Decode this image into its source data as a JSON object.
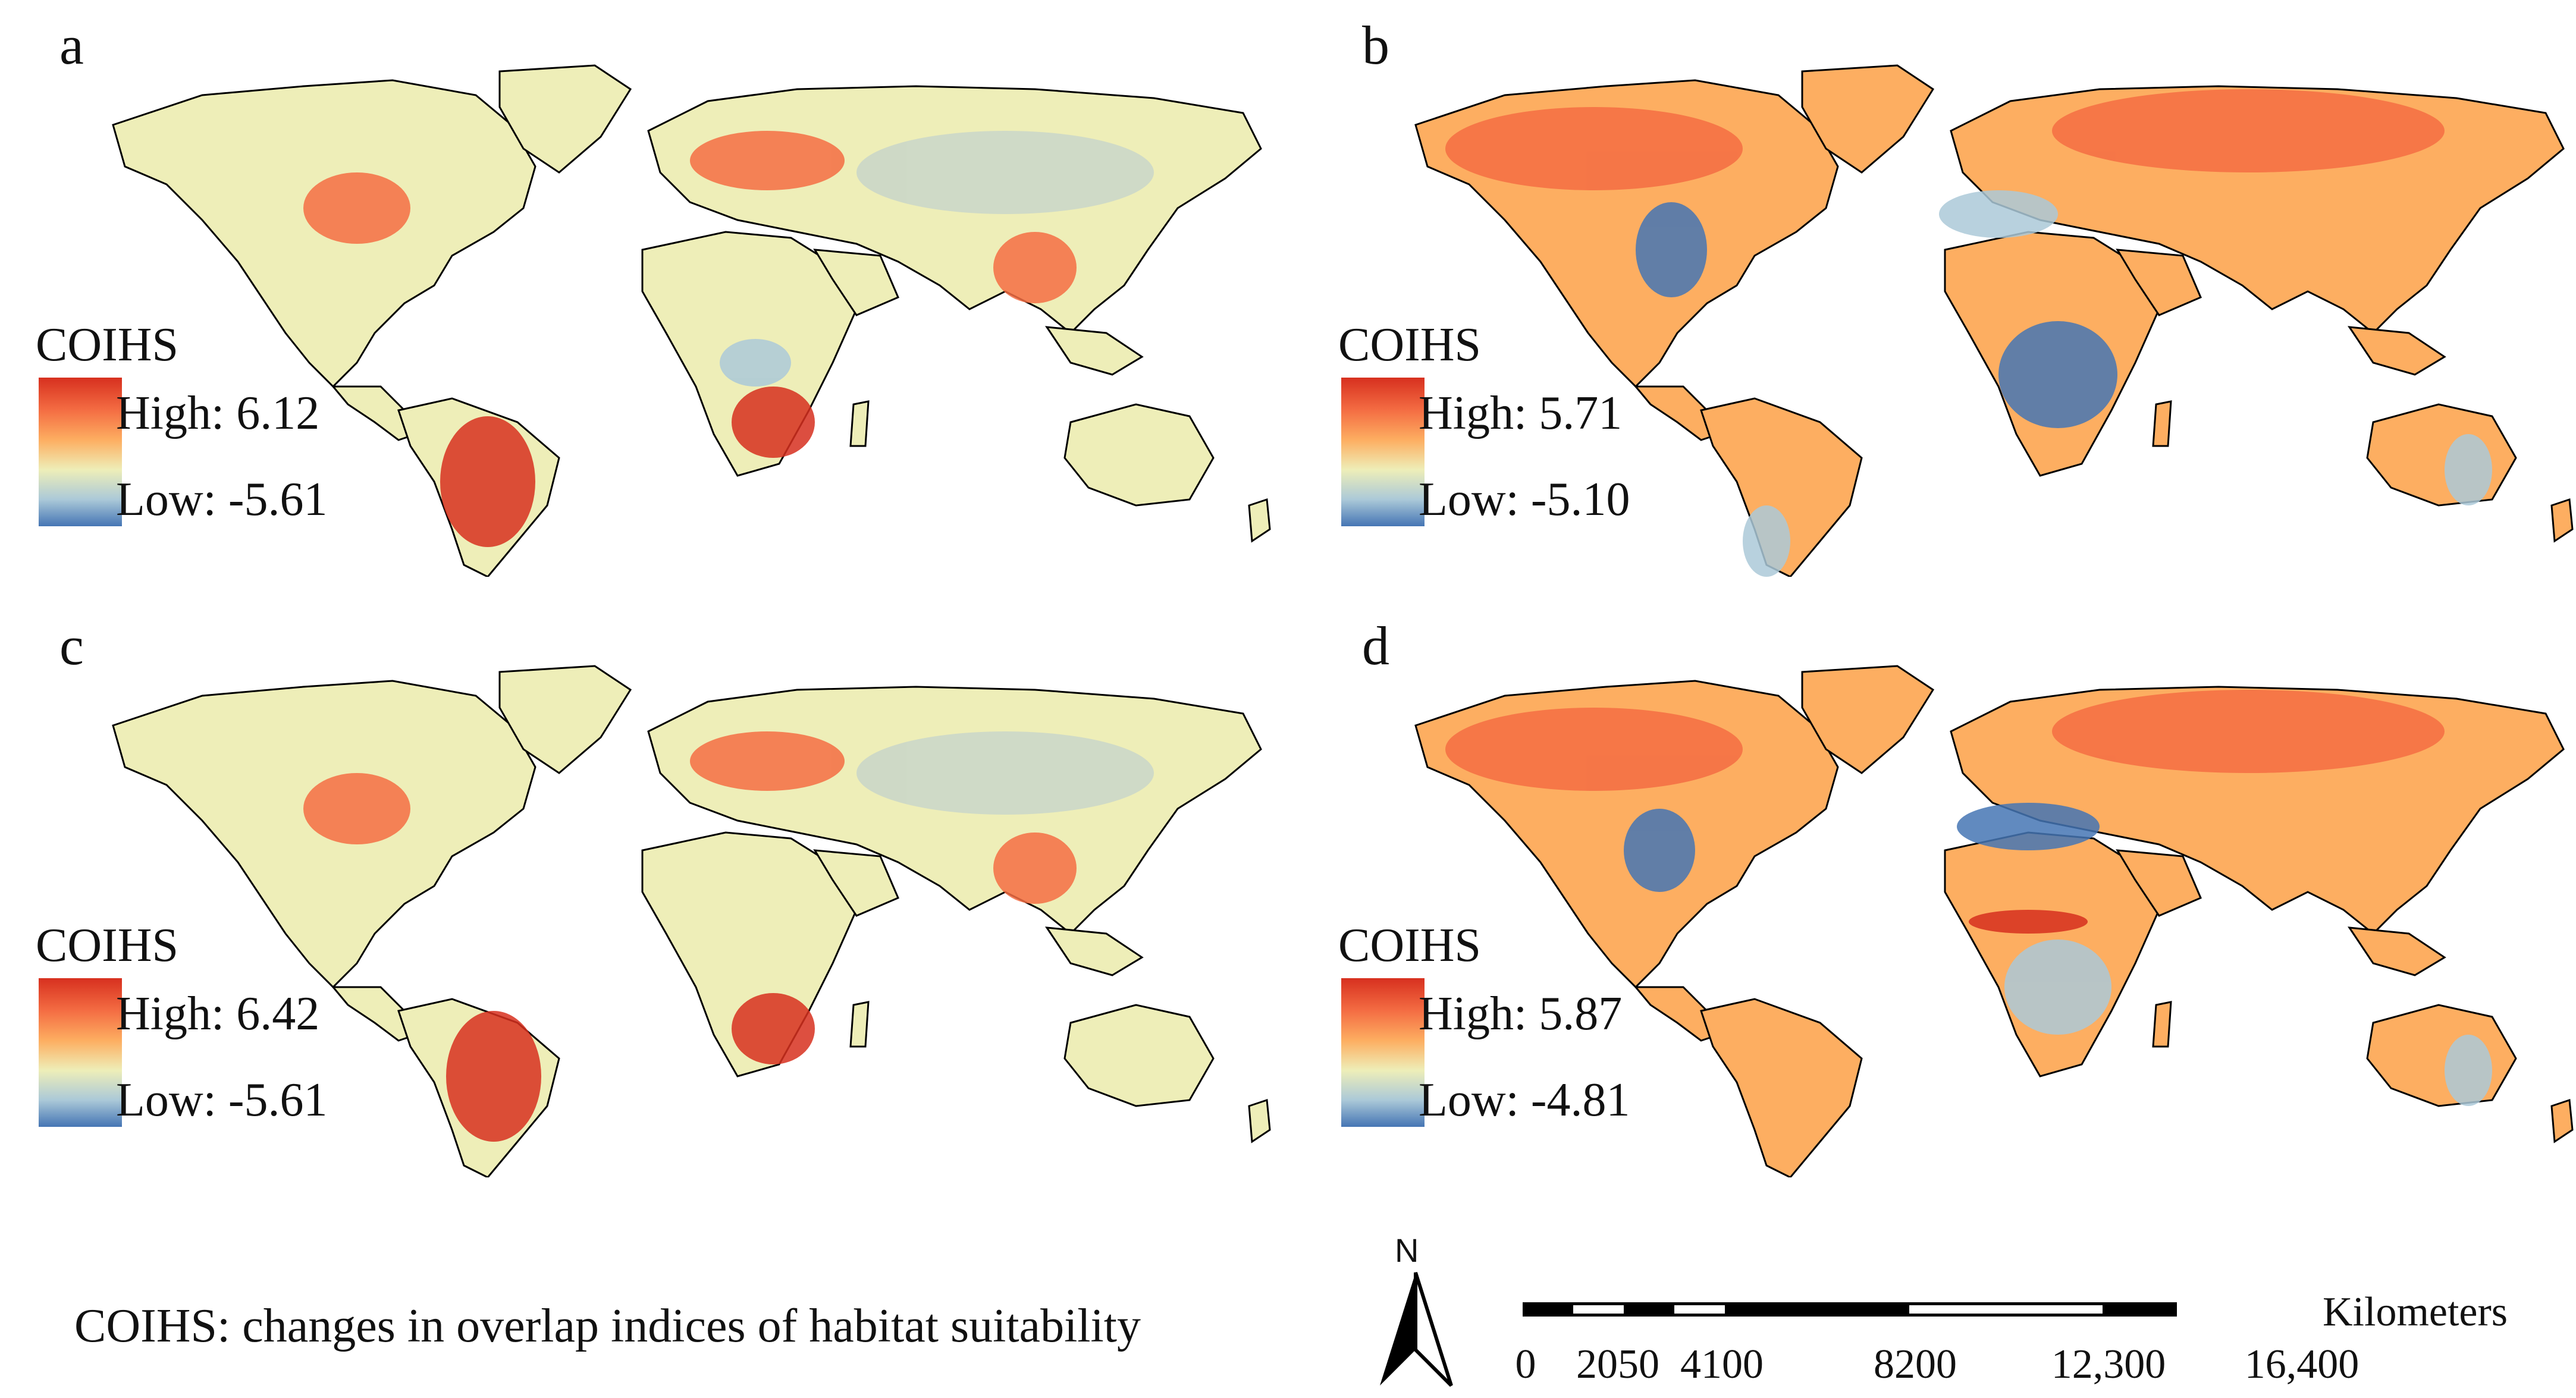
{
  "legend_title": "COIHS",
  "colors": {
    "high": "#d7301f",
    "mid_high": "#fdae61",
    "mid": "#eeeeb8",
    "low": "#4575b4",
    "coast": "#000000",
    "nodata": "#ffffff"
  },
  "panels": [
    {
      "letter": "a",
      "high_label": "High: 6.12",
      "low_label": "Low: -5.61"
    },
    {
      "letter": "b",
      "high_label": "High: 5.71",
      "low_label": "Low: -5.10"
    },
    {
      "letter": "c",
      "high_label": "High: 6.42",
      "low_label": "Low: -5.61"
    },
    {
      "letter": "d",
      "high_label": "High: 5.87",
      "low_label": "Low: -4.81"
    }
  ],
  "footnote": "COIHS: changes in overlap indices of habitat suitability",
  "north_label": "N",
  "scale": {
    "unit": "Kilometers",
    "ticks": [
      "0",
      "2050",
      "4100",
      "8200",
      "12,300",
      "16,400"
    ],
    "tick_values_km": [
      0,
      2050,
      4100,
      8200,
      12300,
      16400
    ]
  }
}
